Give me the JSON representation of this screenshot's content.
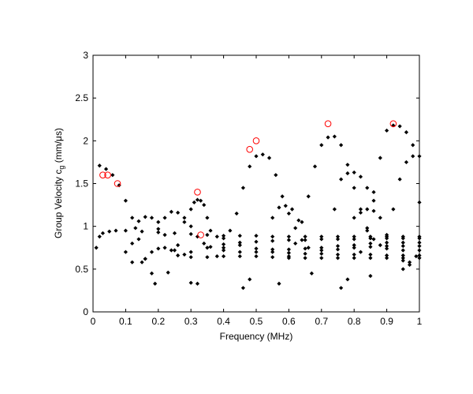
{
  "chart_data": {
    "type": "scatter",
    "title": "",
    "xlabel": "Frequency (MHz)",
    "ylabel_main": "Group Velocity c",
    "ylabel_sub": "g",
    "ylabel_tail": " (mm/μs)",
    "xlim": [
      0,
      1
    ],
    "ylim": [
      0,
      3
    ],
    "xticks": [
      0,
      0.1,
      0.2,
      0.3,
      0.4,
      0.5,
      0.6,
      0.7,
      0.8,
      0.9,
      1
    ],
    "xtick_labels": [
      "0",
      "0.1",
      "0.2",
      "0.3",
      "0.4",
      "0.5",
      "0.6",
      "0.7",
      "0.8",
      "0.9",
      "1"
    ],
    "yticks": [
      0,
      0.5,
      1,
      1.5,
      2,
      2.5,
      3
    ],
    "ytick_labels": [
      "0",
      "0.5",
      "1",
      "1.5",
      "2",
      "2.5",
      "3"
    ],
    "grid": false,
    "series": [
      {
        "marker": "filled-diamond",
        "color": "#000000",
        "points": [
          [
            0.01,
            0.75
          ],
          [
            0.02,
            0.88
          ],
          [
            0.03,
            0.92
          ],
          [
            0.05,
            0.94
          ],
          [
            0.07,
            0.95
          ],
          [
            0.1,
            0.95
          ],
          [
            0.15,
            0.94
          ],
          [
            0.2,
            0.93
          ],
          [
            0.25,
            0.92
          ],
          [
            0.3,
            0.91
          ],
          [
            0.35,
            0.9
          ],
          [
            0.4,
            0.89
          ],
          [
            0.45,
            0.89
          ],
          [
            0.5,
            0.89
          ],
          [
            0.55,
            0.88
          ],
          [
            0.6,
            0.88
          ],
          [
            0.65,
            0.88
          ],
          [
            0.7,
            0.88
          ],
          [
            0.75,
            0.88
          ],
          [
            0.8,
            0.88
          ],
          [
            0.85,
            0.88
          ],
          [
            0.9,
            0.88
          ],
          [
            0.95,
            0.88
          ],
          [
            1.0,
            0.88
          ],
          [
            0.02,
            1.71
          ],
          [
            0.04,
            1.67
          ],
          [
            0.06,
            1.6
          ],
          [
            0.08,
            1.48
          ],
          [
            0.1,
            1.3
          ],
          [
            0.12,
            1.1
          ],
          [
            0.14,
            0.85
          ],
          [
            0.16,
            0.62
          ],
          [
            0.18,
            0.45
          ],
          [
            0.19,
            0.33
          ],
          [
            0.15,
            0.58
          ],
          [
            0.16,
            0.62
          ],
          [
            0.18,
            0.7
          ],
          [
            0.2,
            0.74
          ],
          [
            0.22,
            0.75
          ],
          [
            0.25,
            0.72
          ],
          [
            0.28,
            0.67
          ],
          [
            0.3,
            0.64
          ],
          [
            0.35,
            0.64
          ],
          [
            0.4,
            0.65
          ],
          [
            0.45,
            0.65
          ],
          [
            0.5,
            0.65
          ],
          [
            0.55,
            0.64
          ],
          [
            0.6,
            0.63
          ],
          [
            0.65,
            0.63
          ],
          [
            0.7,
            0.63
          ],
          [
            0.75,
            0.63
          ],
          [
            0.8,
            0.63
          ],
          [
            0.85,
            0.63
          ],
          [
            0.9,
            0.63
          ],
          [
            0.95,
            0.63
          ],
          [
            1.0,
            0.63
          ],
          [
            0.1,
            0.7
          ],
          [
            0.12,
            0.8
          ],
          [
            0.13,
            0.98
          ],
          [
            0.14,
            1.06
          ],
          [
            0.16,
            1.11
          ],
          [
            0.18,
            1.1
          ],
          [
            0.2,
            1.05
          ],
          [
            0.22,
            0.9
          ],
          [
            0.24,
            0.72
          ],
          [
            0.26,
            0.66
          ],
          [
            0.3,
            0.7
          ],
          [
            0.35,
            0.75
          ],
          [
            0.4,
            0.79
          ],
          [
            0.45,
            0.81
          ],
          [
            0.5,
            0.82
          ],
          [
            0.55,
            0.83
          ],
          [
            0.6,
            0.84
          ],
          [
            0.65,
            0.84
          ],
          [
            0.7,
            0.85
          ],
          [
            0.75,
            0.85
          ],
          [
            0.8,
            0.85
          ],
          [
            0.85,
            0.86
          ],
          [
            0.9,
            0.86
          ],
          [
            0.95,
            0.86
          ],
          [
            1.0,
            0.86
          ],
          [
            0.2,
            0.97
          ],
          [
            0.22,
            1.1
          ],
          [
            0.24,
            1.17
          ],
          [
            0.26,
            1.16
          ],
          [
            0.28,
            1.1
          ],
          [
            0.3,
            1.0
          ],
          [
            0.32,
            0.88
          ],
          [
            0.34,
            0.8
          ],
          [
            0.36,
            0.76
          ],
          [
            0.4,
            0.72
          ],
          [
            0.45,
            0.7
          ],
          [
            0.5,
            0.7
          ],
          [
            0.55,
            0.7
          ],
          [
            0.6,
            0.69
          ],
          [
            0.65,
            0.68
          ],
          [
            0.7,
            0.68
          ],
          [
            0.75,
            0.67
          ],
          [
            0.8,
            0.67
          ],
          [
            0.85,
            0.67
          ],
          [
            0.9,
            0.66
          ],
          [
            0.95,
            0.66
          ],
          [
            1.0,
            0.66
          ],
          [
            0.26,
            0.78
          ],
          [
            0.28,
            1.05
          ],
          [
            0.3,
            1.2
          ],
          [
            0.31,
            1.28
          ],
          [
            0.32,
            1.31
          ],
          [
            0.33,
            1.3
          ],
          [
            0.34,
            1.25
          ],
          [
            0.35,
            1.1
          ],
          [
            0.36,
            0.95
          ],
          [
            0.38,
            0.88
          ],
          [
            0.4,
            0.86
          ],
          [
            0.45,
            0.78
          ],
          [
            0.5,
            0.74
          ],
          [
            0.55,
            0.73
          ],
          [
            0.6,
            0.73
          ],
          [
            0.65,
            0.74
          ],
          [
            0.7,
            0.75
          ],
          [
            0.75,
            0.77
          ],
          [
            0.8,
            0.78
          ],
          [
            0.85,
            0.8
          ],
          [
            0.9,
            0.81
          ],
          [
            0.95,
            0.81
          ],
          [
            1.0,
            0.81
          ],
          [
            0.38,
            0.65
          ],
          [
            0.4,
            0.75
          ],
          [
            0.42,
            0.95
          ],
          [
            0.44,
            1.15
          ],
          [
            0.46,
            1.45
          ],
          [
            0.48,
            1.7
          ],
          [
            0.5,
            1.82
          ],
          [
            0.52,
            1.84
          ],
          [
            0.54,
            1.8
          ],
          [
            0.56,
            1.6
          ],
          [
            0.58,
            1.35
          ],
          [
            0.6,
            1.15
          ],
          [
            0.62,
            0.98
          ],
          [
            0.64,
            0.84
          ],
          [
            0.66,
            0.75
          ],
          [
            0.7,
            0.72
          ],
          [
            0.75,
            0.73
          ],
          [
            0.8,
            0.75
          ],
          [
            0.85,
            0.76
          ],
          [
            0.9,
            0.77
          ],
          [
            0.95,
            0.77
          ],
          [
            1.0,
            0.77
          ],
          [
            0.55,
            1.1
          ],
          [
            0.57,
            1.22
          ],
          [
            0.59,
            1.24
          ],
          [
            0.61,
            1.2
          ],
          [
            0.63,
            1.07
          ],
          [
            0.6,
            0.65
          ],
          [
            0.62,
            0.8
          ],
          [
            0.64,
            1.05
          ],
          [
            0.66,
            1.35
          ],
          [
            0.68,
            1.7
          ],
          [
            0.7,
            1.95
          ],
          [
            0.72,
            2.04
          ],
          [
            0.74,
            2.05
          ],
          [
            0.76,
            1.95
          ],
          [
            0.78,
            1.72
          ],
          [
            0.8,
            1.45
          ],
          [
            0.82,
            1.2
          ],
          [
            0.84,
            0.98
          ],
          [
            0.86,
            0.85
          ],
          [
            0.88,
            0.78
          ],
          [
            0.9,
            0.74
          ],
          [
            0.95,
            0.72
          ],
          [
            1.0,
            0.72
          ],
          [
            0.74,
            1.2
          ],
          [
            0.76,
            1.55
          ],
          [
            0.78,
            1.62
          ],
          [
            0.8,
            1.63
          ],
          [
            0.82,
            1.58
          ],
          [
            0.84,
            1.45
          ],
          [
            0.86,
            1.3
          ],
          [
            0.8,
            1.1
          ],
          [
            0.82,
            1.16
          ],
          [
            0.84,
            1.2
          ],
          [
            0.86,
            1.18
          ],
          [
            0.88,
            1.1
          ],
          [
            0.82,
            0.7
          ],
          [
            0.84,
            0.95
          ],
          [
            0.86,
            1.4
          ],
          [
            0.88,
            1.8
          ],
          [
            0.9,
            2.12
          ],
          [
            0.92,
            2.18
          ],
          [
            0.94,
            2.17
          ],
          [
            0.96,
            2.1
          ],
          [
            0.98,
            1.95
          ],
          [
            1.0,
            1.82
          ],
          [
            0.9,
            0.9
          ],
          [
            0.92,
            1.2
          ],
          [
            0.94,
            1.55
          ],
          [
            0.96,
            1.75
          ],
          [
            0.98,
            1.82
          ],
          [
            1.0,
            1.28
          ],
          [
            0.95,
            0.6
          ],
          [
            0.97,
            0.55
          ],
          [
            0.99,
            0.65
          ],
          [
            0.32,
            0.33
          ],
          [
            0.46,
            0.28
          ],
          [
            0.48,
            0.38
          ],
          [
            0.57,
            0.33
          ],
          [
            0.67,
            0.45
          ],
          [
            0.76,
            0.28
          ],
          [
            0.78,
            0.38
          ],
          [
            0.85,
            0.42
          ],
          [
            0.95,
            0.5
          ],
          [
            0.97,
            0.58
          ],
          [
            0.3,
            0.34
          ],
          [
            0.12,
            0.58
          ],
          [
            0.23,
            0.46
          ]
        ]
      },
      {
        "marker": "open-circle",
        "color": "#ff0000",
        "points": [
          [
            0.03,
            1.6
          ],
          [
            0.045,
            1.6
          ],
          [
            0.075,
            1.5
          ],
          [
            0.32,
            1.4
          ],
          [
            0.33,
            0.9
          ],
          [
            0.48,
            1.9
          ],
          [
            0.5,
            2.0
          ],
          [
            0.72,
            2.2
          ],
          [
            0.92,
            2.2
          ]
        ]
      }
    ]
  }
}
